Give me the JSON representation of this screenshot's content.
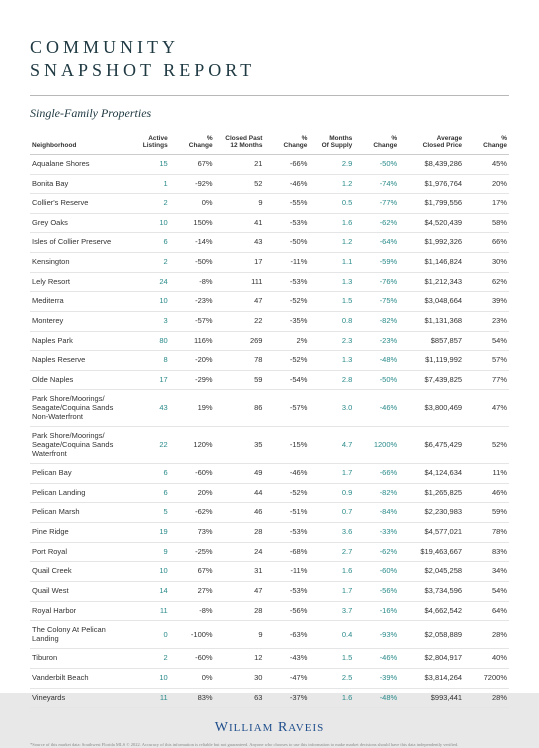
{
  "title": {
    "line1": "COMMUNITY",
    "line2": "SNAPSHOT REPORT"
  },
  "subtitle": "Single-Family Properties",
  "colors": {
    "heading": "#203a43",
    "teal": "#2a8a8a",
    "text": "#333333",
    "divider": "#b8b8b8",
    "row_border": "#e5e5e5",
    "brand": "#1f4e8c",
    "background": "#ffffff"
  },
  "columns": [
    {
      "key": "name",
      "label": "Neighborhood",
      "align": "left",
      "teal": false
    },
    {
      "key": "active",
      "label": "Active Listings",
      "align": "right",
      "teal": true
    },
    {
      "key": "active_pct",
      "label": "% Change",
      "align": "right",
      "teal": false
    },
    {
      "key": "closed12",
      "label": "Closed Past 12 Months",
      "align": "right",
      "teal": false
    },
    {
      "key": "closed12_pct",
      "label": "% Change",
      "align": "right",
      "teal": false
    },
    {
      "key": "mos",
      "label": "Months Of Supply",
      "align": "right",
      "teal": true
    },
    {
      "key": "mos_pct",
      "label": "% Change",
      "align": "right",
      "teal": true
    },
    {
      "key": "avg_price",
      "label": "Average Closed Price",
      "align": "right",
      "teal": false
    },
    {
      "key": "avg_price_pct",
      "label": "% Change",
      "align": "right",
      "teal": false
    }
  ],
  "rows": [
    {
      "name": "Aqualane Shores",
      "active": "15",
      "active_pct": "67%",
      "closed12": "21",
      "closed12_pct": "-66%",
      "mos": "2.9",
      "mos_pct": "-50%",
      "avg_price": "$8,439,286",
      "avg_price_pct": "45%"
    },
    {
      "name": "Bonita Bay",
      "active": "1",
      "active_pct": "-92%",
      "closed12": "52",
      "closed12_pct": "-46%",
      "mos": "1.2",
      "mos_pct": "-74%",
      "avg_price": "$1,976,764",
      "avg_price_pct": "20%"
    },
    {
      "name": "Collier's Reserve",
      "active": "2",
      "active_pct": "0%",
      "closed12": "9",
      "closed12_pct": "-55%",
      "mos": "0.5",
      "mos_pct": "-77%",
      "avg_price": "$1,799,556",
      "avg_price_pct": "17%"
    },
    {
      "name": "Grey Oaks",
      "active": "10",
      "active_pct": "150%",
      "closed12": "41",
      "closed12_pct": "-53%",
      "mos": "1.6",
      "mos_pct": "-62%",
      "avg_price": "$4,520,439",
      "avg_price_pct": "58%"
    },
    {
      "name": "Isles of Collier Preserve",
      "active": "6",
      "active_pct": "-14%",
      "closed12": "43",
      "closed12_pct": "-50%",
      "mos": "1.2",
      "mos_pct": "-64%",
      "avg_price": "$1,992,326",
      "avg_price_pct": "66%"
    },
    {
      "name": "Kensington",
      "active": "2",
      "active_pct": "-50%",
      "closed12": "17",
      "closed12_pct": "-11%",
      "mos": "1.1",
      "mos_pct": "-59%",
      "avg_price": "$1,146,824",
      "avg_price_pct": "30%"
    },
    {
      "name": "Lely Resort",
      "active": "24",
      "active_pct": "-8%",
      "closed12": "111",
      "closed12_pct": "-53%",
      "mos": "1.3",
      "mos_pct": "-76%",
      "avg_price": "$1,212,343",
      "avg_price_pct": "62%"
    },
    {
      "name": "Mediterra",
      "active": "10",
      "active_pct": "-23%",
      "closed12": "47",
      "closed12_pct": "-52%",
      "mos": "1.5",
      "mos_pct": "-75%",
      "avg_price": "$3,048,664",
      "avg_price_pct": "39%"
    },
    {
      "name": "Monterey",
      "active": "3",
      "active_pct": "-57%",
      "closed12": "22",
      "closed12_pct": "-35%",
      "mos": "0.8",
      "mos_pct": "-82%",
      "avg_price": "$1,131,368",
      "avg_price_pct": "23%"
    },
    {
      "name": "Naples Park",
      "active": "80",
      "active_pct": "116%",
      "closed12": "269",
      "closed12_pct": "2%",
      "mos": "2.3",
      "mos_pct": "-23%",
      "avg_price": "$857,857",
      "avg_price_pct": "54%"
    },
    {
      "name": "Naples Reserve",
      "active": "8",
      "active_pct": "-20%",
      "closed12": "78",
      "closed12_pct": "-52%",
      "mos": "1.3",
      "mos_pct": "-48%",
      "avg_price": "$1,119,992",
      "avg_price_pct": "57%"
    },
    {
      "name": "Olde Naples",
      "active": "17",
      "active_pct": "-29%",
      "closed12": "59",
      "closed12_pct": "-54%",
      "mos": "2.8",
      "mos_pct": "-50%",
      "avg_price": "$7,439,825",
      "avg_price_pct": "77%"
    },
    {
      "name": "Park Shore/Moorings/ Seagate/Coquina Sands Non-Waterfront",
      "active": "43",
      "active_pct": "19%",
      "closed12": "86",
      "closed12_pct": "-57%",
      "mos": "3.0",
      "mos_pct": "-46%",
      "avg_price": "$3,800,469",
      "avg_price_pct": "47%"
    },
    {
      "name": "Park Shore/Moorings/ Seagate/Coquina Sands Waterfront",
      "active": "22",
      "active_pct": "120%",
      "closed12": "35",
      "closed12_pct": "-15%",
      "mos": "4.7",
      "mos_pct": "1200%",
      "avg_price": "$6,475,429",
      "avg_price_pct": "52%"
    },
    {
      "name": "Pelican Bay",
      "active": "6",
      "active_pct": "-60%",
      "closed12": "49",
      "closed12_pct": "-46%",
      "mos": "1.7",
      "mos_pct": "-66%",
      "avg_price": "$4,124,634",
      "avg_price_pct": "11%"
    },
    {
      "name": "Pelican Landing",
      "active": "6",
      "active_pct": "20%",
      "closed12": "44",
      "closed12_pct": "-52%",
      "mos": "0.9",
      "mos_pct": "-82%",
      "avg_price": "$1,265,825",
      "avg_price_pct": "46%"
    },
    {
      "name": "Pelican Marsh",
      "active": "5",
      "active_pct": "-62%",
      "closed12": "46",
      "closed12_pct": "-51%",
      "mos": "0.7",
      "mos_pct": "-84%",
      "avg_price": "$2,230,983",
      "avg_price_pct": "59%"
    },
    {
      "name": "Pine Ridge",
      "active": "19",
      "active_pct": "73%",
      "closed12": "28",
      "closed12_pct": "-53%",
      "mos": "3.6",
      "mos_pct": "-33%",
      "avg_price": "$4,577,021",
      "avg_price_pct": "78%"
    },
    {
      "name": "Port Royal",
      "active": "9",
      "active_pct": "-25%",
      "closed12": "24",
      "closed12_pct": "-68%",
      "mos": "2.7",
      "mos_pct": "-62%",
      "avg_price": "$19,463,667",
      "avg_price_pct": "83%"
    },
    {
      "name": "Quail Creek",
      "active": "10",
      "active_pct": "67%",
      "closed12": "31",
      "closed12_pct": "-11%",
      "mos": "1.6",
      "mos_pct": "-60%",
      "avg_price": "$2,045,258",
      "avg_price_pct": "34%"
    },
    {
      "name": "Quail West",
      "active": "14",
      "active_pct": "27%",
      "closed12": "47",
      "closed12_pct": "-53%",
      "mos": "1.7",
      "mos_pct": "-56%",
      "avg_price": "$3,734,596",
      "avg_price_pct": "54%"
    },
    {
      "name": "Royal Harbor",
      "active": "11",
      "active_pct": "-8%",
      "closed12": "28",
      "closed12_pct": "-56%",
      "mos": "3.7",
      "mos_pct": "-16%",
      "avg_price": "$4,662,542",
      "avg_price_pct": "64%"
    },
    {
      "name": "The Colony At Pelican Landing",
      "active": "0",
      "active_pct": "-100%",
      "closed12": "9",
      "closed12_pct": "-63%",
      "mos": "0.4",
      "mos_pct": "-93%",
      "avg_price": "$2,058,889",
      "avg_price_pct": "28%"
    },
    {
      "name": "Tiburon",
      "active": "2",
      "active_pct": "-60%",
      "closed12": "12",
      "closed12_pct": "-43%",
      "mos": "1.5",
      "mos_pct": "-46%",
      "avg_price": "$2,804,917",
      "avg_price_pct": "40%"
    },
    {
      "name": "Vanderbilt Beach",
      "active": "10",
      "active_pct": "0%",
      "closed12": "30",
      "closed12_pct": "-47%",
      "mos": "2.5",
      "mos_pct": "-39%",
      "avg_price": "$3,814,264",
      "avg_price_pct": "7200%"
    },
    {
      "name": "Vineyards",
      "active": "11",
      "active_pct": "83%",
      "closed12": "63",
      "closed12_pct": "-37%",
      "mos": "1.6",
      "mos_pct": "-48%",
      "avg_price": "$993,441",
      "avg_price_pct": "28%"
    }
  ],
  "brand": "William Raveis",
  "footnote": "*Source of this market data: Southwest Florida MLS © 2022. Accuracy of this information is reliable but not guaranteed. Anyone who chooses to use this information to make market decisions should have this data independently verified."
}
